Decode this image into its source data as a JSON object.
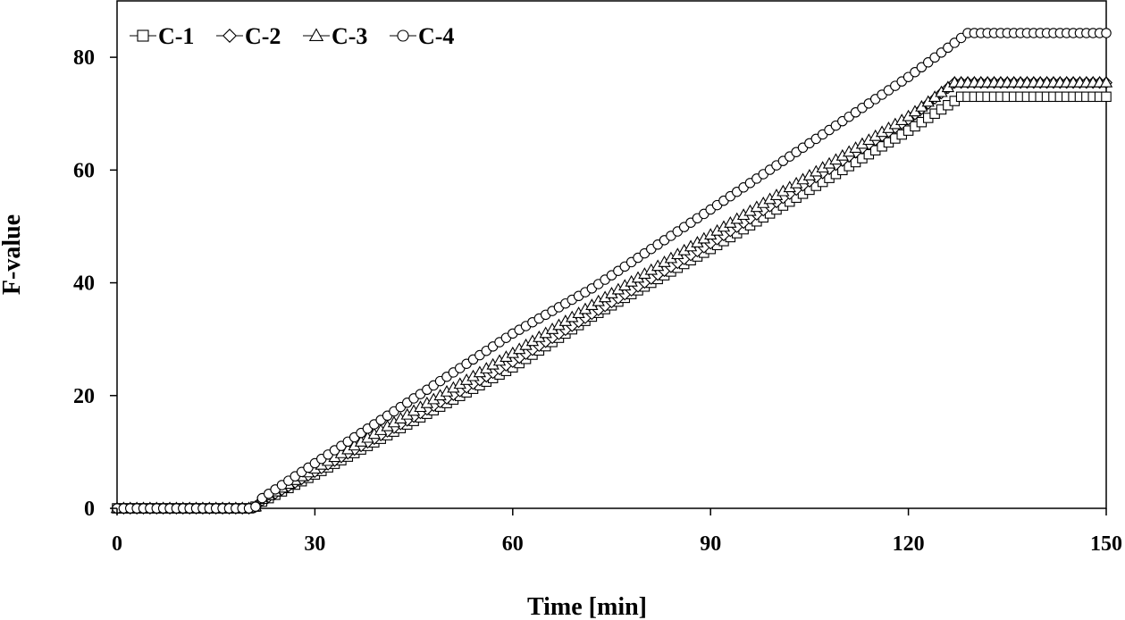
{
  "chart_data": {
    "type": "line",
    "title": "",
    "xlabel": "Time [min]",
    "ylabel": "F-value",
    "xlim": [
      0,
      150
    ],
    "ylim": [
      0,
      90
    ],
    "x_ticks": [
      0,
      30,
      60,
      90,
      120,
      150
    ],
    "y_ticks": [
      0,
      20,
      40,
      60,
      80
    ],
    "grid": false,
    "legend_position": "top-left",
    "sample_step_min": 1,
    "series": [
      {
        "name": "C-1",
        "marker": "square",
        "points": [
          [
            0,
            0
          ],
          [
            20,
            0
          ],
          [
            21,
            0.3
          ],
          [
            22,
            1.2
          ],
          [
            30,
            6
          ],
          [
            60,
            25
          ],
          [
            72,
            34
          ],
          [
            90,
            46
          ],
          [
            120,
            67
          ],
          [
            128,
            73
          ],
          [
            150,
            73
          ]
        ]
      },
      {
        "name": "C-2",
        "marker": "diamond",
        "points": [
          [
            0,
            0
          ],
          [
            20,
            0
          ],
          [
            21,
            0.3
          ],
          [
            22,
            1.4
          ],
          [
            30,
            6.5
          ],
          [
            60,
            26
          ],
          [
            72,
            34.5
          ],
          [
            90,
            47
          ],
          [
            120,
            69
          ],
          [
            127,
            75.5
          ],
          [
            150,
            75.5
          ]
        ]
      },
      {
        "name": "C-3",
        "marker": "triangle",
        "points": [
          [
            0,
            0
          ],
          [
            20,
            0
          ],
          [
            21,
            0.3
          ],
          [
            22,
            1.6
          ],
          [
            30,
            7
          ],
          [
            60,
            27.5
          ],
          [
            72,
            36
          ],
          [
            90,
            48.5
          ],
          [
            120,
            69.5
          ],
          [
            127,
            75.5
          ],
          [
            150,
            75.5
          ]
        ]
      },
      {
        "name": "C-4",
        "marker": "circle",
        "points": [
          [
            0,
            0
          ],
          [
            20,
            0
          ],
          [
            21,
            0.3
          ],
          [
            22,
            1.8
          ],
          [
            30,
            8
          ],
          [
            60,
            31
          ],
          [
            72,
            39
          ],
          [
            90,
            53
          ],
          [
            120,
            76.5
          ],
          [
            129,
            84.3
          ],
          [
            150,
            84.3
          ]
        ]
      }
    ]
  }
}
